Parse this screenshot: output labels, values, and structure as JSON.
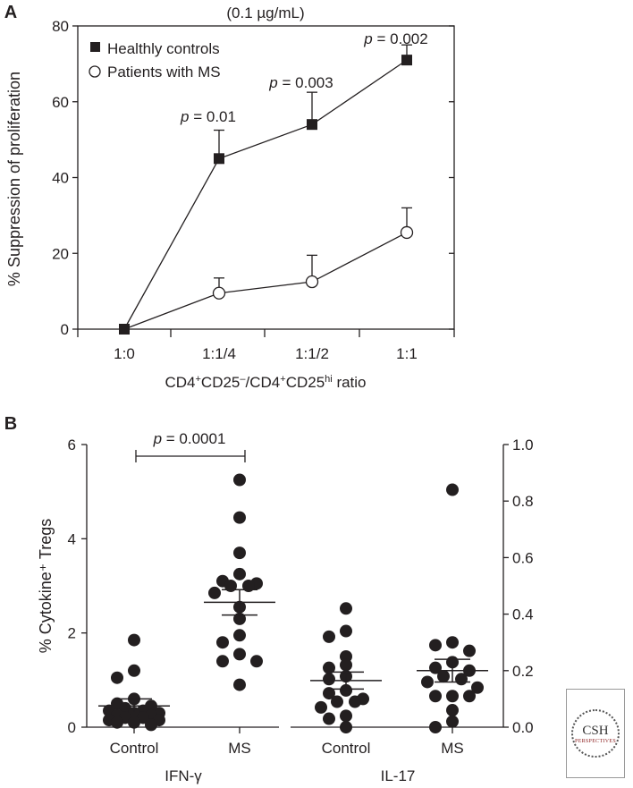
{
  "chart_data": [
    {
      "panel": "A",
      "type": "line",
      "title": "(0.1 µg/mL)",
      "xlabel": "CD4⁺CD25⁻/CD4⁺CD25ʰⁱ ratio",
      "ylabel": "% Suppression of proliferation",
      "categories": [
        "1:0",
        "1:1/4",
        "1:1/2",
        "1:1"
      ],
      "ylim": [
        0,
        80
      ],
      "yticks": [
        0,
        20,
        40,
        60,
        80
      ],
      "legend_position": "top-left",
      "series": [
        {
          "name": "Healthly controls",
          "marker": "filled-square",
          "values": [
            0,
            45,
            54,
            71
          ],
          "error_upper": [
            0,
            7.5,
            8.5,
            4
          ]
        },
        {
          "name": "Patients with MS",
          "marker": "open-circle",
          "values": [
            0,
            9.5,
            12.5,
            25.5
          ],
          "error_upper": [
            0,
            4,
            7,
            6.5
          ]
        }
      ],
      "annotations": [
        {
          "category": "1:1/4",
          "text": "p = 0.01"
        },
        {
          "category": "1:1/2",
          "text": "p = 0.003"
        },
        {
          "category": "1:1",
          "text": "p = 0.002"
        }
      ]
    },
    {
      "panel": "B",
      "type": "scatter",
      "ylabel": "% Cytokine⁺ Tregs",
      "left_axis": {
        "ylim": [
          0,
          6
        ],
        "yticks": [
          "0",
          "2",
          "4",
          "6"
        ]
      },
      "right_axis": {
        "ylim": [
          0,
          1.0
        ],
        "yticks": [
          "0.0",
          "0.2",
          "0.4",
          "0.6",
          "0.8",
          "1.0"
        ]
      },
      "groups": [
        {
          "cytokine": "IFN-γ",
          "label": "Control",
          "axis": "left",
          "mean": 0.45,
          "sem": 0.15,
          "values": [
            1.85,
            1.2,
            1.05,
            0.6,
            0.5,
            0.45,
            0.4,
            0.35,
            0.35,
            0.3,
            0.3,
            0.25,
            0.25,
            0.2,
            0.2,
            0.15,
            0.15,
            0.1,
            0.1,
            0.05
          ]
        },
        {
          "cytokine": "IFN-γ",
          "label": "MS",
          "axis": "left",
          "mean": 2.65,
          "sem": 0.27,
          "values": [
            5.25,
            4.45,
            3.7,
            3.25,
            3.1,
            3.05,
            3.0,
            3.0,
            2.85,
            2.55,
            2.3,
            1.95,
            1.8,
            1.55,
            1.4,
            1.4,
            0.9
          ]
        },
        {
          "cytokine": "IL-17",
          "label": "Control",
          "axis": "right",
          "mean": 0.165,
          "sem": 0.03,
          "values": [
            0.42,
            0.34,
            0.32,
            0.25,
            0.22,
            0.21,
            0.18,
            0.17,
            0.13,
            0.12,
            0.1,
            0.09,
            0.09,
            0.07,
            0.04,
            0.03,
            0.0
          ]
        },
        {
          "cytokine": "IL-17",
          "label": "MS",
          "axis": "right",
          "mean": 0.2,
          "sem": 0.04,
          "values": [
            0.84,
            0.3,
            0.29,
            0.27,
            0.23,
            0.21,
            0.2,
            0.18,
            0.17,
            0.16,
            0.14,
            0.11,
            0.11,
            0.11,
            0.06,
            0.02,
            0.0
          ]
        }
      ],
      "cytokine_labels": [
        "IFN-γ",
        "IL-17"
      ],
      "annotation": "p = 0.0001"
    }
  ],
  "panel_labels": [
    "A",
    "B"
  ],
  "logo": {
    "line1": "CSH",
    "line2": "PERSPECTIVES"
  }
}
